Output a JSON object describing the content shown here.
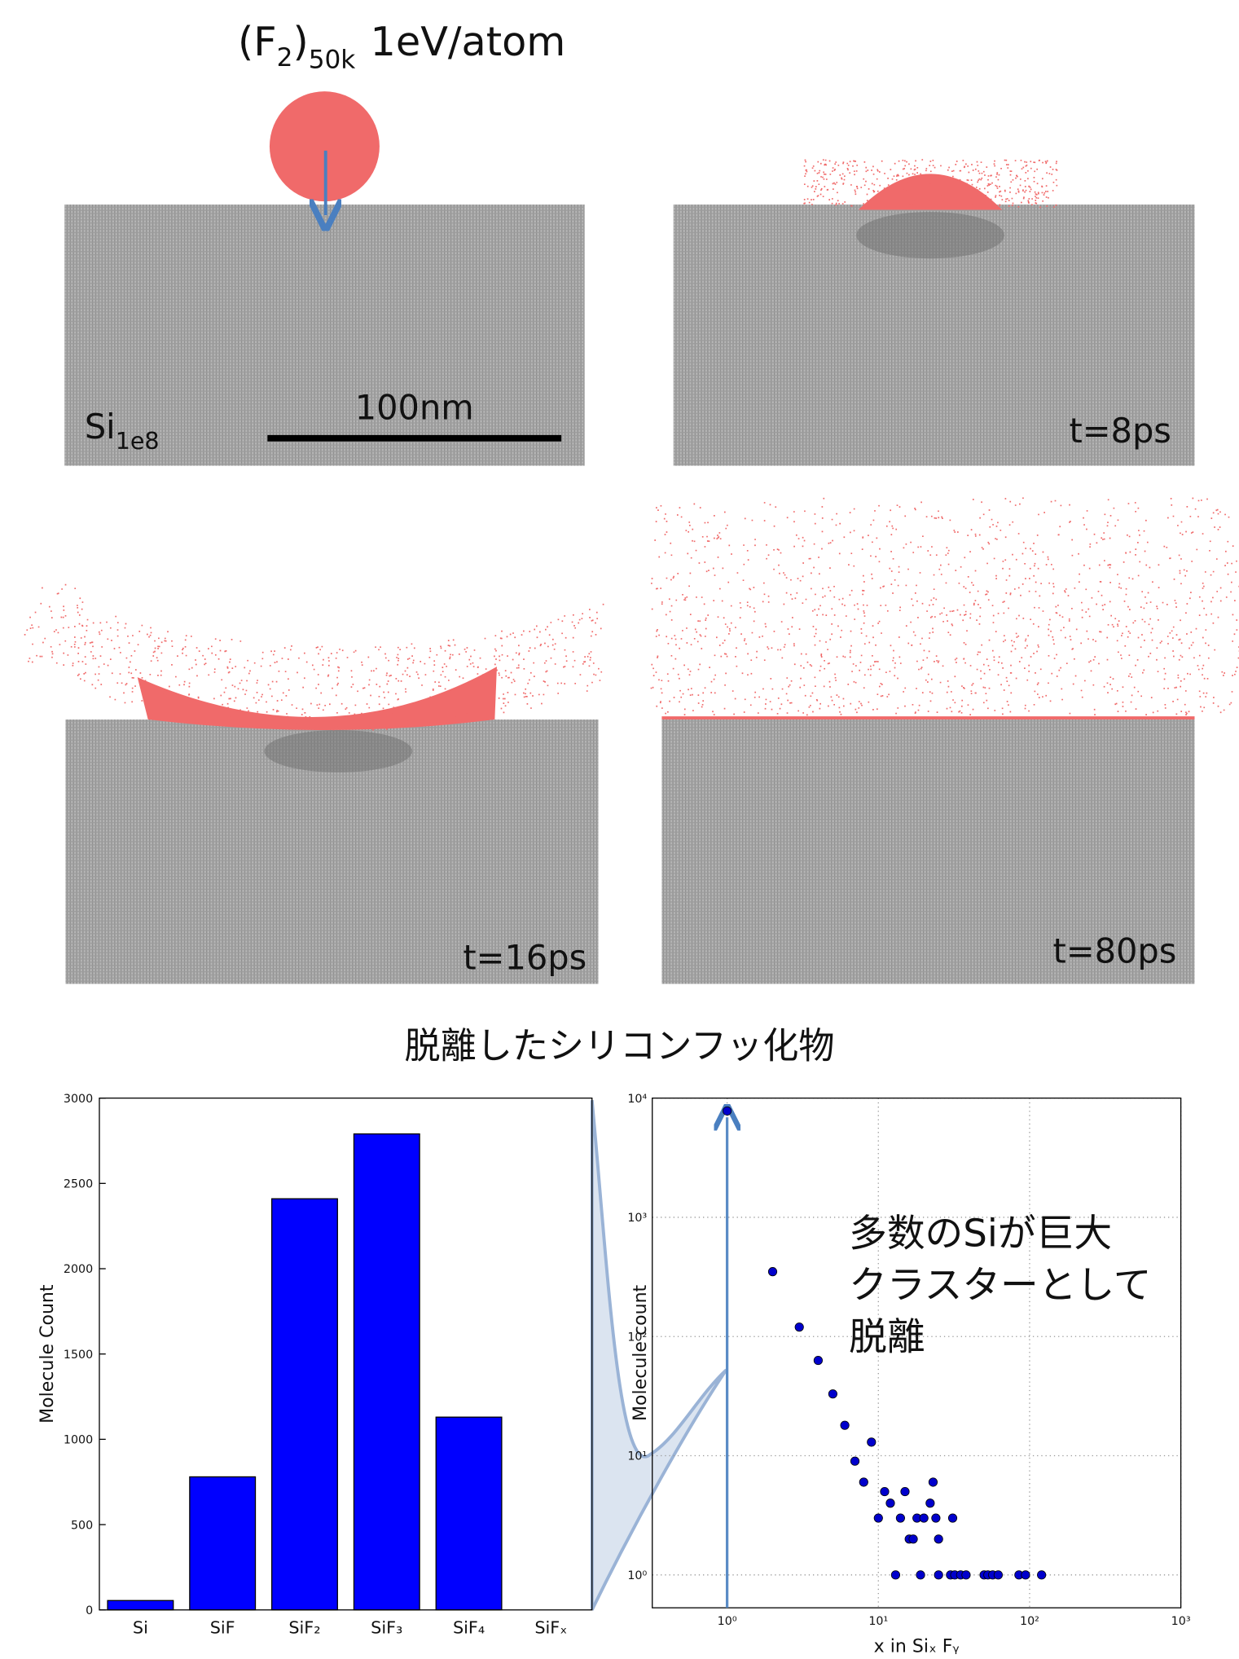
{
  "header": {
    "formula": [
      "(F",
      "2",
      ")",
      "50k"
    ],
    "energy": "1eV/atom"
  },
  "panels": [
    {
      "label": [
        "Si",
        "1e8"
      ],
      "scale_bar": "100nm"
    },
    {
      "label": "t=8ps"
    },
    {
      "label": "t=16ps"
    },
    {
      "label": "t=80ps"
    }
  ],
  "section_title": "脱離したシリコンフッ化物",
  "chart_data": [
    {
      "type": "bar",
      "categories": [
        "Si",
        "SiF",
        "SiF₂",
        "SiF₃",
        "SiF₄",
        "SiFₓ"
      ],
      "values": [
        55,
        780,
        2410,
        2790,
        1130,
        null
      ],
      "color": "#0000ff",
      "ylabel": "Molecule Count",
      "ylim": [
        0,
        3000
      ],
      "yticks": [
        0,
        500,
        1000,
        1500,
        2000,
        2500,
        3000
      ],
      "grid": false
    },
    {
      "type": "scatter",
      "xscale": "log",
      "yscale": "log",
      "x": [
        1,
        2,
        3,
        4,
        5,
        6,
        7,
        8,
        9,
        10,
        11,
        12,
        13,
        14,
        15,
        16,
        17,
        18,
        19,
        20,
        22,
        23,
        24,
        25,
        25,
        30,
        31,
        32,
        35,
        38,
        50,
        53,
        57,
        62,
        85,
        94,
        120
      ],
      "values": [
        7800,
        350,
        120,
        63,
        33,
        18,
        9,
        6,
        13,
        3,
        5,
        4,
        1,
        3,
        5,
        2,
        2,
        3,
        1,
        3,
        4,
        6,
        3,
        2,
        1,
        1,
        3,
        1,
        1,
        1,
        1,
        1,
        1,
        1,
        1,
        1,
        1
      ],
      "color": "#0000cc",
      "xlabel": "x in Siₓ Fᵧ",
      "ylabel": "Molecule count",
      "xlim": [
        0.32,
        1000
      ],
      "ylim": [
        0.53,
        10000
      ],
      "xticks": [
        {
          "value": 1,
          "label": "10⁰"
        },
        {
          "value": 10,
          "label": "10¹"
        },
        {
          "value": 100,
          "label": "10²"
        },
        {
          "value": 1000,
          "label": "10³"
        }
      ],
      "yticks": [
        {
          "value": 1,
          "label": "10⁰"
        },
        {
          "value": 10,
          "label": "10¹"
        },
        {
          "value": 100,
          "label": "10²"
        },
        {
          "value": 1000,
          "label": "10³"
        },
        {
          "value": 10000,
          "label": "10⁴"
        }
      ],
      "grid": true,
      "annotation": [
        "多数のSiが巨大",
        "クラスターとして",
        "脱離"
      ]
    }
  ]
}
